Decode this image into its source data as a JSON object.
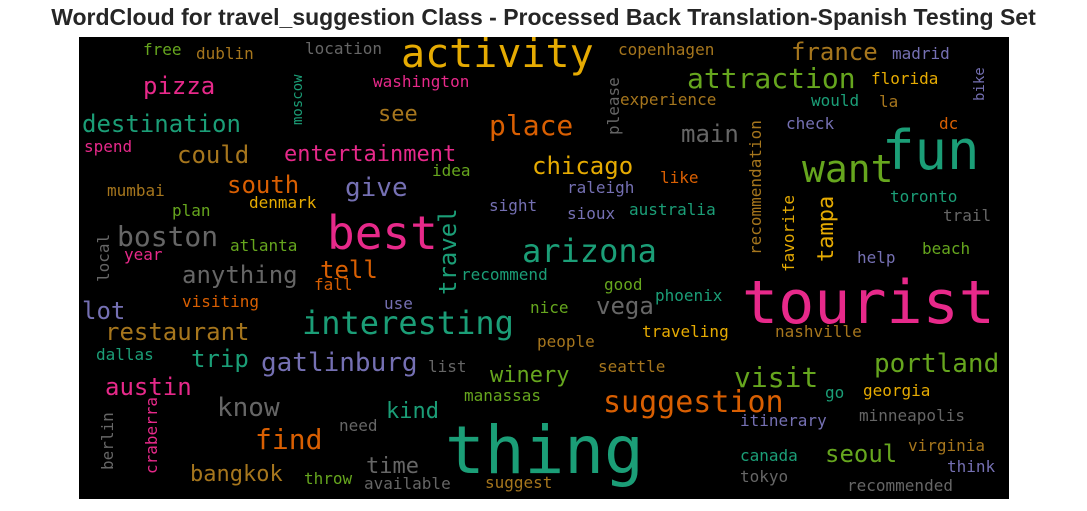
{
  "chart_data": {
    "type": "wordcloud",
    "title": "WordCloud for travel_suggestion Class - Processed Back Translation-Spanish Testing Set",
    "background": "#000000",
    "palette": [
      "#1b9e77",
      "#d95f02",
      "#7570b3",
      "#e7298a",
      "#66a61e",
      "#e6ab02",
      "#a6761d",
      "#666666"
    ],
    "words": [
      {
        "text": "activity",
        "color": "#e6ab02",
        "rotate": 0
      },
      {
        "text": "fun",
        "color": "#1b9e77",
        "rotate": 0
      },
      {
        "text": "want",
        "color": "#66a61e",
        "rotate": 0
      },
      {
        "text": "best",
        "color": "#e7298a",
        "rotate": 0
      },
      {
        "text": "tourist",
        "color": "#e7298a",
        "rotate": 0
      },
      {
        "text": "thing",
        "color": "#1b9e77",
        "rotate": 0
      },
      {
        "text": "arizona",
        "color": "#1b9e77",
        "rotate": 0
      },
      {
        "text": "interesting",
        "color": "#1b9e77",
        "rotate": 0
      },
      {
        "text": "suggestion",
        "color": "#d95f02",
        "rotate": 0
      },
      {
        "text": "attraction",
        "color": "#66a61e",
        "rotate": 0
      },
      {
        "text": "place",
        "color": "#d95f02",
        "rotate": 0
      },
      {
        "text": "travel",
        "color": "#1b9e77",
        "rotate": -90
      },
      {
        "text": "boston",
        "color": "#666666",
        "rotate": 0
      },
      {
        "text": "find",
        "color": "#d95f02",
        "rotate": 0
      },
      {
        "text": "visit",
        "color": "#66a61e",
        "rotate": 0
      },
      {
        "text": "portland",
        "color": "#66a61e",
        "rotate": 0
      },
      {
        "text": "gatlinburg",
        "color": "#7570b3",
        "rotate": 0
      },
      {
        "text": "know",
        "color": "#666666",
        "rotate": 0
      },
      {
        "text": "give",
        "color": "#7570b3",
        "rotate": 0
      },
      {
        "text": "chicago",
        "color": "#e6ab02",
        "rotate": 0
      },
      {
        "text": "france",
        "color": "#a6761d",
        "rotate": 0
      },
      {
        "text": "destination",
        "color": "#1b9e77",
        "rotate": 0
      },
      {
        "text": "pizza",
        "color": "#e7298a",
        "rotate": 0
      },
      {
        "text": "entertainment",
        "color": "#e7298a",
        "rotate": 0
      },
      {
        "text": "could",
        "color": "#a6761d",
        "rotate": 0
      },
      {
        "text": "main",
        "color": "#666666",
        "rotate": 0
      },
      {
        "text": "south",
        "color": "#d95f02",
        "rotate": 0
      },
      {
        "text": "anything",
        "color": "#666666",
        "rotate": 0
      },
      {
        "text": "tell",
        "color": "#d95f02",
        "rotate": 0
      },
      {
        "text": "tampa",
        "color": "#e6ab02",
        "rotate": -90
      },
      {
        "text": "vega",
        "color": "#666666",
        "rotate": 0
      },
      {
        "text": "lot",
        "color": "#7570b3",
        "rotate": 0
      },
      {
        "text": "restaurant",
        "color": "#a6761d",
        "rotate": 0
      },
      {
        "text": "trip",
        "color": "#1b9e77",
        "rotate": 0
      },
      {
        "text": "austin",
        "color": "#e7298a",
        "rotate": 0
      },
      {
        "text": "winery",
        "color": "#66a61e",
        "rotate": 0
      },
      {
        "text": "kind",
        "color": "#1b9e77",
        "rotate": 0
      },
      {
        "text": "bangkok",
        "color": "#a6761d",
        "rotate": 0
      },
      {
        "text": "time",
        "color": "#666666",
        "rotate": 0
      },
      {
        "text": "seoul",
        "color": "#66a61e",
        "rotate": 0
      },
      {
        "text": "see",
        "color": "#a6761d",
        "rotate": 0
      },
      {
        "text": "free",
        "color": "#66a61e",
        "rotate": 0
      },
      {
        "text": "dublin",
        "color": "#a6761d",
        "rotate": 0
      },
      {
        "text": "location",
        "color": "#666666",
        "rotate": 0
      },
      {
        "text": "washington",
        "color": "#e7298a",
        "rotate": 0
      },
      {
        "text": "copenhagen",
        "color": "#a6761d",
        "rotate": 0
      },
      {
        "text": "madrid",
        "color": "#7570b3",
        "rotate": 0
      },
      {
        "text": "florida",
        "color": "#e6ab02",
        "rotate": 0
      },
      {
        "text": "moscow",
        "color": "#1b9e77",
        "rotate": -90
      },
      {
        "text": "please",
        "color": "#666666",
        "rotate": -90
      },
      {
        "text": "experience",
        "color": "#a6761d",
        "rotate": 0
      },
      {
        "text": "would",
        "color": "#1b9e77",
        "rotate": 0
      },
      {
        "text": "la",
        "color": "#a6761d",
        "rotate": 0
      },
      {
        "text": "bike",
        "color": "#7570b3",
        "rotate": -90
      },
      {
        "text": "check",
        "color": "#7570b3",
        "rotate": 0
      },
      {
        "text": "dc",
        "color": "#d95f02",
        "rotate": 0
      },
      {
        "text": "spend",
        "color": "#e7298a",
        "rotate": 0
      },
      {
        "text": "idea",
        "color": "#66a61e",
        "rotate": 0
      },
      {
        "text": "like",
        "color": "#d95f02",
        "rotate": 0
      },
      {
        "text": "mumbai",
        "color": "#a6761d",
        "rotate": 0
      },
      {
        "text": "denmark",
        "color": "#e6ab02",
        "rotate": 0
      },
      {
        "text": "plan",
        "color": "#66a61e",
        "rotate": 0
      },
      {
        "text": "sight",
        "color": "#7570b3",
        "rotate": 0
      },
      {
        "text": "raleigh",
        "color": "#7570b3",
        "rotate": 0
      },
      {
        "text": "sioux",
        "color": "#7570b3",
        "rotate": 0
      },
      {
        "text": "australia",
        "color": "#1b9e77",
        "rotate": 0
      },
      {
        "text": "recommendation",
        "color": "#a6761d",
        "rotate": -90
      },
      {
        "text": "favorite",
        "color": "#e6ab02",
        "rotate": -90
      },
      {
        "text": "toronto",
        "color": "#1b9e77",
        "rotate": 0
      },
      {
        "text": "trail",
        "color": "#666666",
        "rotate": 0
      },
      {
        "text": "atlanta",
        "color": "#66a61e",
        "rotate": 0
      },
      {
        "text": "year",
        "color": "#e7298a",
        "rotate": 0
      },
      {
        "text": "local",
        "color": "#666666",
        "rotate": -90
      },
      {
        "text": "recommend",
        "color": "#1b9e77",
        "rotate": 0
      },
      {
        "text": "fall",
        "color": "#d95f02",
        "rotate": 0
      },
      {
        "text": "good",
        "color": "#66a61e",
        "rotate": 0
      },
      {
        "text": "beach",
        "color": "#66a61e",
        "rotate": 0
      },
      {
        "text": "help",
        "color": "#7570b3",
        "rotate": 0
      },
      {
        "text": "visiting",
        "color": "#d95f02",
        "rotate": 0
      },
      {
        "text": "use",
        "color": "#7570b3",
        "rotate": 0
      },
      {
        "text": "phoenix",
        "color": "#1b9e77",
        "rotate": 0
      },
      {
        "text": "nice",
        "color": "#66a61e",
        "rotate": 0
      },
      {
        "text": "people",
        "color": "#a6761d",
        "rotate": 0
      },
      {
        "text": "traveling",
        "color": "#e6ab02",
        "rotate": 0
      },
      {
        "text": "nashville",
        "color": "#a6761d",
        "rotate": 0
      },
      {
        "text": "dallas",
        "color": "#1b9e77",
        "rotate": 0
      },
      {
        "text": "list",
        "color": "#666666",
        "rotate": 0
      },
      {
        "text": "seattle",
        "color": "#a6761d",
        "rotate": 0
      },
      {
        "text": "go",
        "color": "#1b9e77",
        "rotate": 0
      },
      {
        "text": "georgia",
        "color": "#e6ab02",
        "rotate": 0
      },
      {
        "text": "manassas",
        "color": "#66a61e",
        "rotate": 0
      },
      {
        "text": "minneapolis",
        "color": "#666666",
        "rotate": 0
      },
      {
        "text": "itinerary",
        "color": "#7570b3",
        "rotate": 0
      },
      {
        "text": "berlin",
        "color": "#666666",
        "rotate": -90
      },
      {
        "text": "craberra",
        "color": "#e7298a",
        "rotate": -90
      },
      {
        "text": "need",
        "color": "#666666",
        "rotate": 0
      },
      {
        "text": "virginia",
        "color": "#a6761d",
        "rotate": 0
      },
      {
        "text": "canada",
        "color": "#1b9e77",
        "rotate": 0
      },
      {
        "text": "think",
        "color": "#7570b3",
        "rotate": 0
      },
      {
        "text": "tokyo",
        "color": "#666666",
        "rotate": 0
      },
      {
        "text": "throw",
        "color": "#66a61e",
        "rotate": 0
      },
      {
        "text": "available",
        "color": "#666666",
        "rotate": 0
      },
      {
        "text": "suggest",
        "color": "#a6761d",
        "rotate": 0
      },
      {
        "text": "recommended",
        "color": "#666666",
        "rotate": 0
      }
    ]
  }
}
